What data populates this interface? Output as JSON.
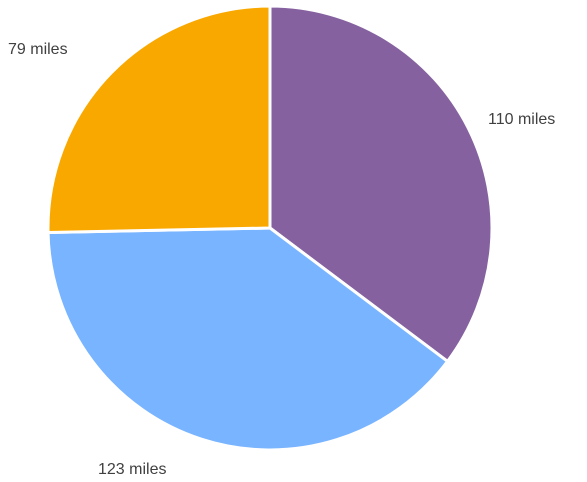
{
  "chart_data": {
    "type": "pie",
    "start_angle_deg": 0,
    "direction": "clockwise",
    "slices": [
      {
        "label": "110 miles",
        "value": 110,
        "color": "#8561A0"
      },
      {
        "label": "123 miles",
        "value": 123,
        "color": "#78B4FF"
      },
      {
        "label": "79 miles",
        "value": 79,
        "color": "#F9A800"
      }
    ],
    "slice_border_color": "#ffffff",
    "legend": "none"
  }
}
